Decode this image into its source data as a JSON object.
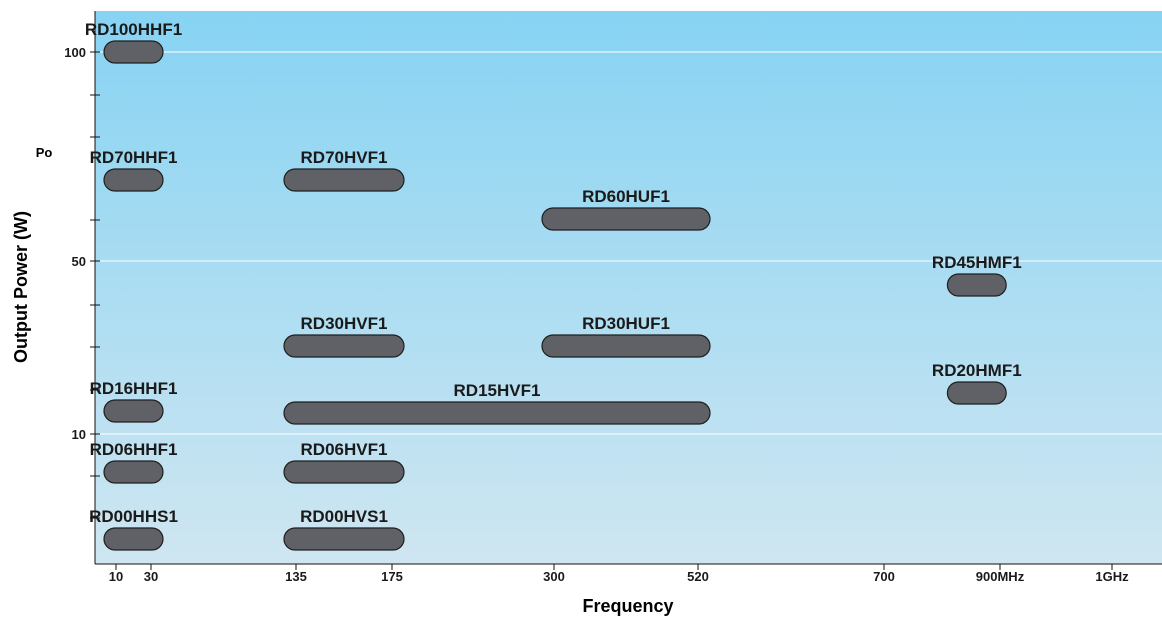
{
  "chart_data": {
    "type": "range-bar",
    "title": "",
    "xlabel": "Frequency",
    "ylabel": "Output Power (W)",
    "y_symbol": "Po",
    "x_ticks": [
      {
        "value": 10,
        "label": "10"
      },
      {
        "value": 30,
        "label": "30"
      },
      {
        "value": 135,
        "label": "135"
      },
      {
        "value": 175,
        "label": "175"
      },
      {
        "value": 300,
        "label": "300"
      },
      {
        "value": 520,
        "label": "520"
      },
      {
        "value": 700,
        "label": "700"
      },
      {
        "value": 900,
        "label": "900MHz"
      },
      {
        "value": 1000,
        "label": "1GHz"
      }
    ],
    "y_ticks": [
      {
        "value": 100,
        "label": "100"
      },
      {
        "value": 50,
        "label": "50"
      },
      {
        "value": 10,
        "label": "10"
      }
    ],
    "grid": true,
    "items": [
      {
        "name": "RD100HHF1",
        "x_start": 10,
        "x_end": 30,
        "power_w": 100
      },
      {
        "name": "RD70HHF1",
        "x_start": 10,
        "x_end": 30,
        "power_w": 70
      },
      {
        "name": "RD70HVF1",
        "x_start": 135,
        "x_end": 175,
        "power_w": 70
      },
      {
        "name": "RD60HUF1",
        "x_start": 300,
        "x_end": 520,
        "power_w": 60
      },
      {
        "name": "RD45HMF1",
        "x_start": 830,
        "x_end": 890,
        "power_w": 45
      },
      {
        "name": "RD30HVF1",
        "x_start": 135,
        "x_end": 175,
        "power_w": 30
      },
      {
        "name": "RD30HUF1",
        "x_start": 300,
        "x_end": 520,
        "power_w": 30
      },
      {
        "name": "RD20HMF1",
        "x_start": 830,
        "x_end": 890,
        "power_w": 20
      },
      {
        "name": "RD16HHF1",
        "x_start": 10,
        "x_end": 30,
        "power_w": 16
      },
      {
        "name": "RD15HVF1",
        "x_start": 135,
        "x_end": 520,
        "power_w": 15
      },
      {
        "name": "RD06HHF1",
        "x_start": 10,
        "x_end": 30,
        "power_w": 6
      },
      {
        "name": "RD06HVF1",
        "x_start": 135,
        "x_end": 175,
        "power_w": 6
      },
      {
        "name": "RD00HHS1",
        "x_start": 10,
        "x_end": 30,
        "power_w": 0.5
      },
      {
        "name": "RD00HVS1",
        "x_start": 135,
        "x_end": 175,
        "power_w": 0.5
      }
    ],
    "colors": {
      "background_top": "#87d3f3",
      "background_bottom": "#cfe6f1",
      "bar_fill": "#5f6166",
      "bar_stroke": "#1f1f1f",
      "grid": "#ffffff",
      "text": "#1a1a1a"
    }
  }
}
